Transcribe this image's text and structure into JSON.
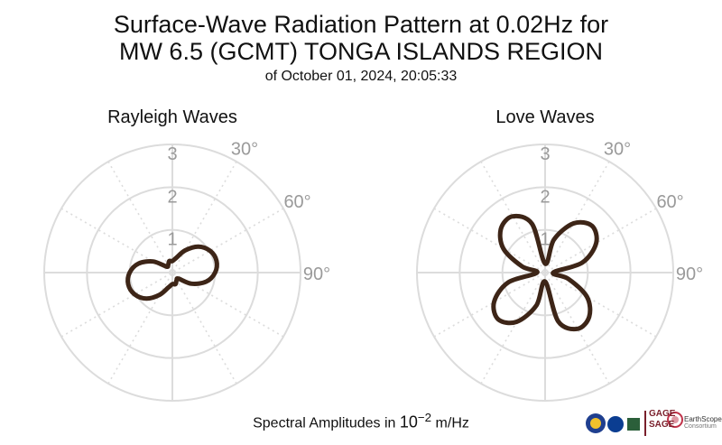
{
  "title": {
    "line1": "Surface-Wave Radiation Pattern at 0.02Hz for",
    "line2": "MW 6.5 (GCMT) TONGA ISLANDS REGION",
    "line3": "of October 01, 2024, 20:05:33"
  },
  "footer": {
    "prefix": "Spectral Amplitudes in ",
    "base": "10",
    "exponent": "−2",
    "suffix": " m/Hz"
  },
  "logos": {
    "gage": "GAGE",
    "sage": "SAGE",
    "earthscope": "EarthScope",
    "consortium": "Consortium"
  },
  "colors": {
    "curve": "#3d2517",
    "grid": "#dcdcdc",
    "label": "#9a9a9a"
  },
  "chart_data": [
    {
      "type": "polar-line",
      "title": "Rayleigh Waves",
      "radial_ticks": [
        "1",
        "2",
        "3"
      ],
      "rmax": 3,
      "angle_ticks": [
        "30°",
        "60°",
        "90°"
      ],
      "series": [
        {
          "theta_deg": [
            0,
            15,
            30,
            45,
            60,
            75,
            90,
            105,
            120,
            135,
            150,
            165,
            180,
            195,
            210,
            225,
            240,
            255,
            270,
            285,
            300,
            315,
            330,
            345
          ],
          "r": [
            0.27,
            0.36,
            0.6,
            0.86,
            1.02,
            1.07,
            1.0,
            0.82,
            0.52,
            0.2,
            0.2,
            0.28,
            0.27,
            0.36,
            0.6,
            0.86,
            1.02,
            1.07,
            1.0,
            0.82,
            0.52,
            0.2,
            0.2,
            0.28
          ]
        }
      ]
    },
    {
      "type": "polar-line",
      "title": "Love Waves",
      "radial_ticks": [
        "1",
        "2",
        "3"
      ],
      "rmax": 3,
      "angle_ticks": [
        "30°",
        "60°",
        "90°"
      ],
      "series": [
        {
          "theta_deg": [
            0,
            15,
            30,
            45,
            60,
            75,
            90,
            105,
            120,
            135,
            150,
            165,
            180,
            195,
            210,
            225,
            240,
            255,
            270,
            285,
            300,
            315,
            330,
            345
          ],
          "r": [
            0.21,
            0.8,
            1.33,
            1.55,
            1.38,
            0.9,
            0.19,
            0.56,
            1.13,
            1.46,
            1.52,
            1.18,
            0.21,
            0.8,
            1.33,
            1.55,
            1.38,
            0.9,
            0.19,
            0.56,
            1.13,
            1.46,
            1.52,
            1.18
          ]
        }
      ]
    }
  ]
}
